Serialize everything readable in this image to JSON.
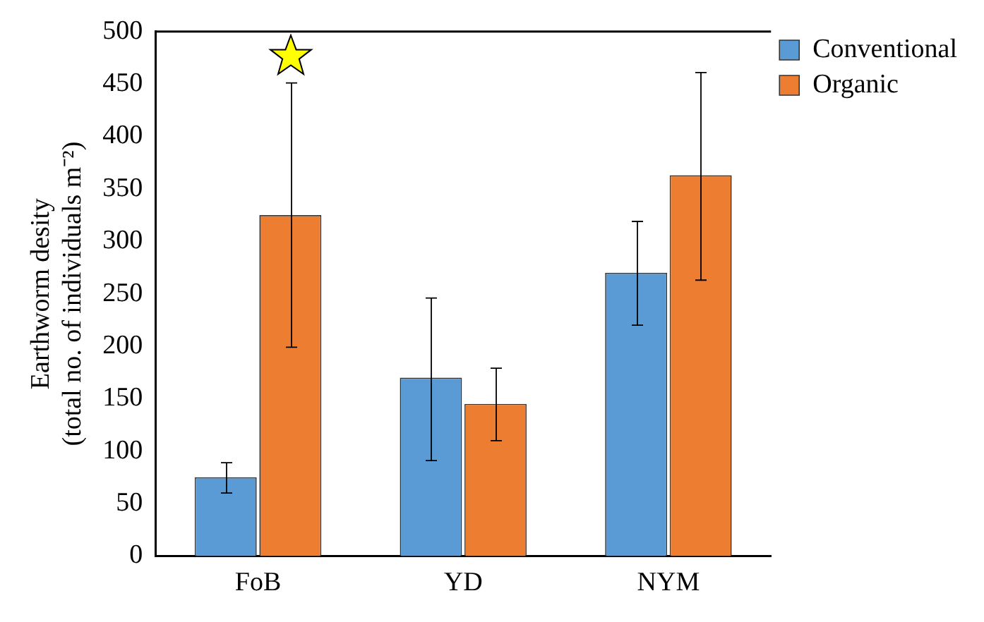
{
  "chart_data": {
    "type": "bar",
    "ylabel": "Earthworm desity\n(total no. of individuals m⁻²)",
    "categories": [
      "FoB",
      "YD",
      "NYM"
    ],
    "series": [
      {
        "name": "Conventional",
        "color": "#5b9bd5",
        "values": [
          75,
          170,
          270
        ],
        "errors": [
          [
            60,
            89
          ],
          [
            91,
            246
          ],
          [
            220,
            319
          ]
        ]
      },
      {
        "name": "Organic",
        "color": "#ed7d31",
        "values": [
          325,
          145,
          363
        ],
        "errors": [
          [
            199,
            451
          ],
          [
            110,
            179
          ],
          [
            263,
            461
          ]
        ]
      }
    ],
    "ylim": [
      0,
      500
    ],
    "yticks": [
      0,
      50,
      100,
      150,
      200,
      250,
      300,
      350,
      400,
      450,
      500
    ],
    "grid": false,
    "legend": "top right"
  }
}
